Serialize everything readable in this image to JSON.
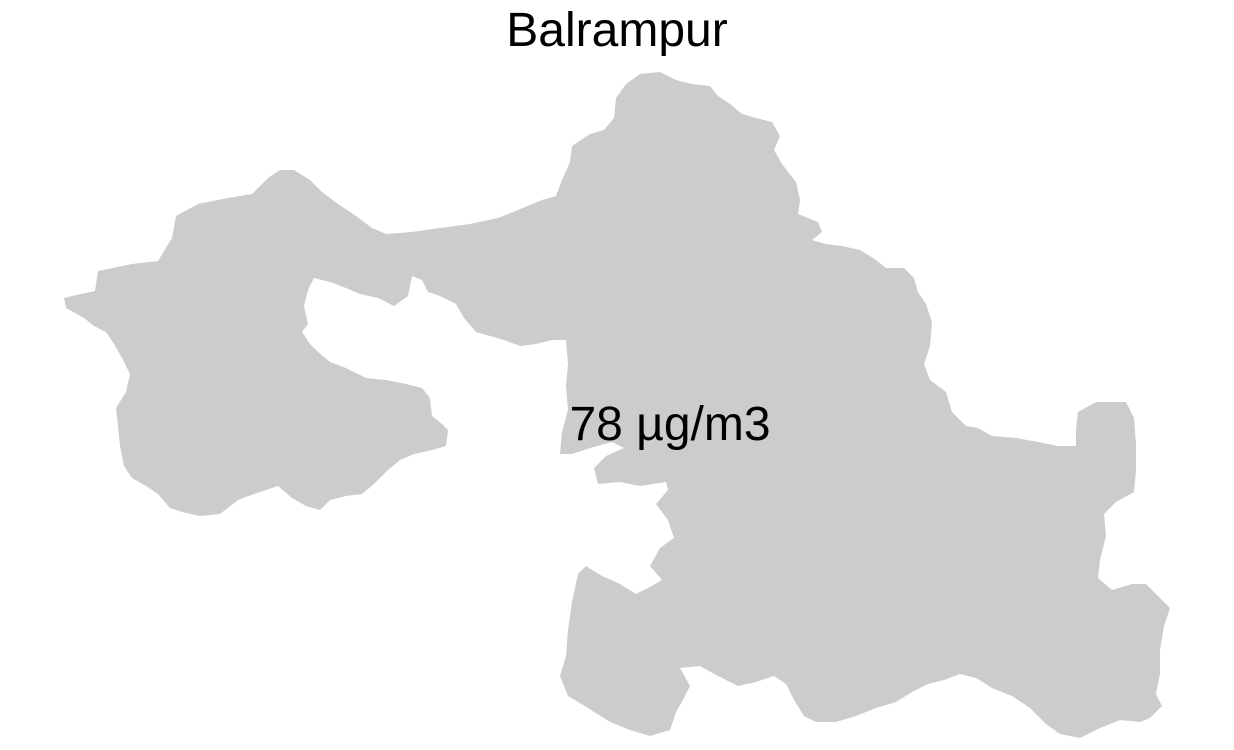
{
  "map": {
    "title": "Balrampur",
    "value_label": "78 µg/m3",
    "region_fill": "#cccccc",
    "background": "#ffffff"
  }
}
